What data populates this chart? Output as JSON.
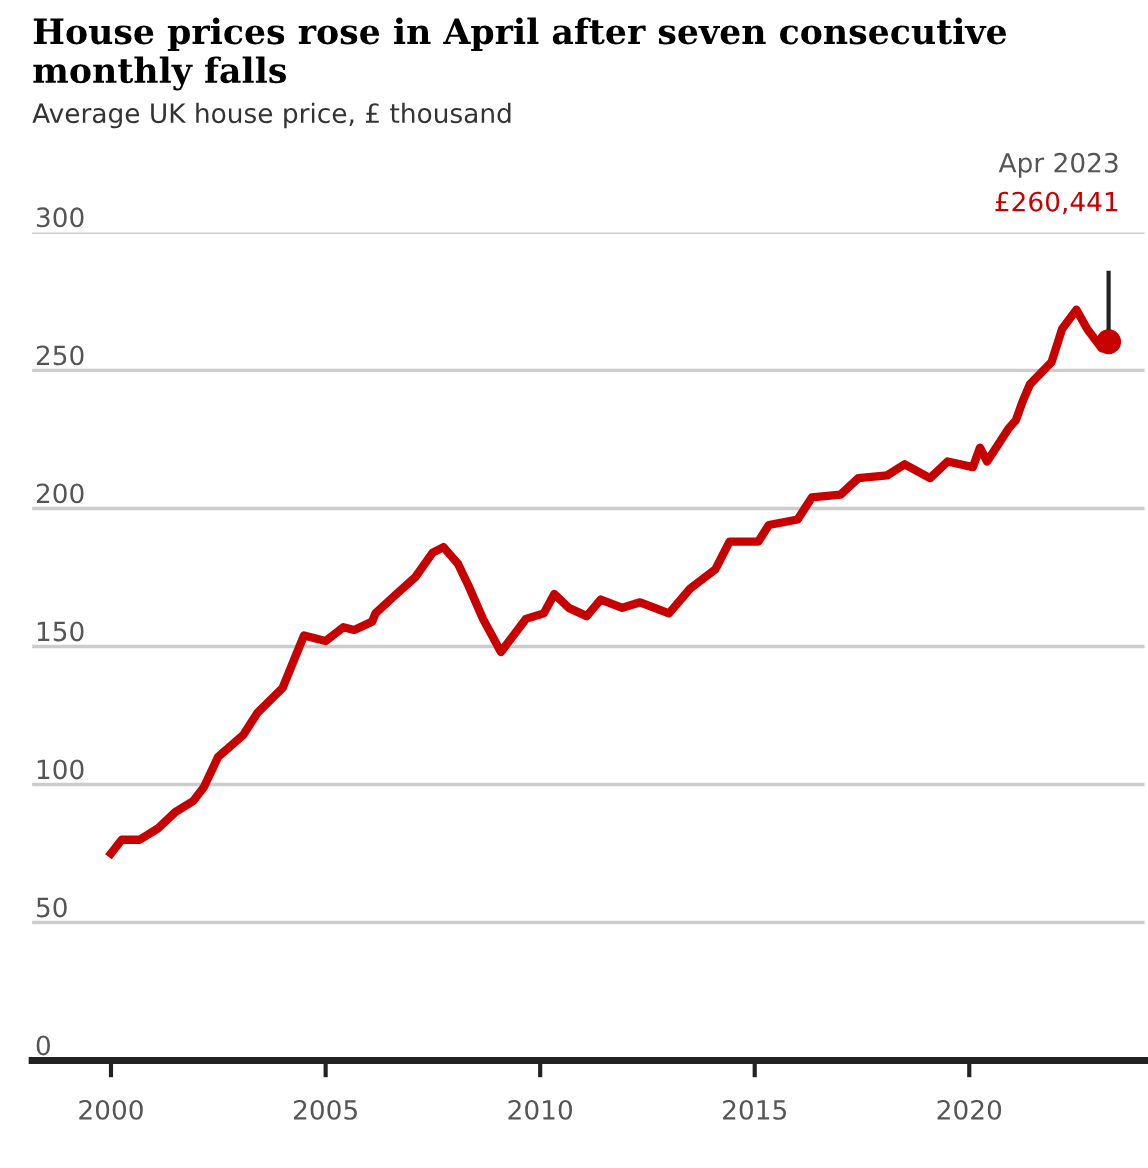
{
  "chart_data": {
    "type": "line",
    "title": "House prices rose in April after seven consecutive monthly falls",
    "subtitle": "Average UK house price, £ thousand",
    "x": [
      "2000-01",
      "2000-04",
      "2000-09",
      "2001-02",
      "2001-07",
      "2001-12",
      "2002-03",
      "2002-07",
      "2003-02",
      "2003-06",
      "2004-01",
      "2004-07",
      "2005-01",
      "2005-06",
      "2005-09",
      "2006-02",
      "2006-03",
      "2006-08",
      "2007-02",
      "2007-07",
      "2007-10",
      "2008-02",
      "2008-05",
      "2008-09",
      "2009-02",
      "2009-09",
      "2010-02",
      "2010-05",
      "2010-09",
      "2011-02",
      "2011-06",
      "2011-12",
      "2012-05",
      "2013-01",
      "2013-07",
      "2014-02",
      "2014-06",
      "2015-02",
      "2015-05",
      "2016-01",
      "2016-05",
      "2017-01",
      "2017-06",
      "2018-02",
      "2018-07",
      "2019-02",
      "2019-07",
      "2020-02",
      "2020-04",
      "2020-06",
      "2020-12",
      "2021-02",
      "2021-04",
      "2021-06",
      "2021-12",
      "2022-03",
      "2022-07",
      "2022-10",
      "2023-02",
      "2023-04"
    ],
    "series": [
      {
        "color": "#c70000",
        "values": [
          75,
          80,
          80,
          84,
          90,
          94,
          99,
          110,
          118,
          126,
          135,
          154,
          152,
          157,
          156,
          159,
          162,
          168,
          175,
          184,
          186,
          180,
          172,
          160,
          148,
          160,
          162,
          169,
          164,
          161,
          167,
          164,
          166,
          162,
          171,
          178,
          188,
          188,
          194,
          196,
          204,
          205,
          211,
          212,
          216,
          211,
          217,
          215,
          222,
          217,
          229,
          232,
          239,
          245,
          253,
          265,
          272,
          265,
          258,
          260.4
        ]
      }
    ],
    "annotations": [
      "Apr 2023",
      "£260,441"
    ],
    "xlim": [
      "1998-03",
      "2024-02"
    ],
    "ylim": [
      0,
      300
    ],
    "xticks": [
      {
        "value": "2000-01-01",
        "label": "2000"
      },
      {
        "value": "2005-01-01",
        "label": "2005"
      },
      {
        "value": "2010-01-01",
        "label": "2010"
      },
      {
        "value": "2015-01-01",
        "label": "2015"
      },
      {
        "value": "2020-01-01",
        "label": "2020"
      }
    ],
    "yticks": [
      0,
      50,
      100,
      150,
      200,
      250,
      300
    ],
    "grid": "y",
    "legend": false,
    "marker": "none",
    "line_style": "solid"
  }
}
